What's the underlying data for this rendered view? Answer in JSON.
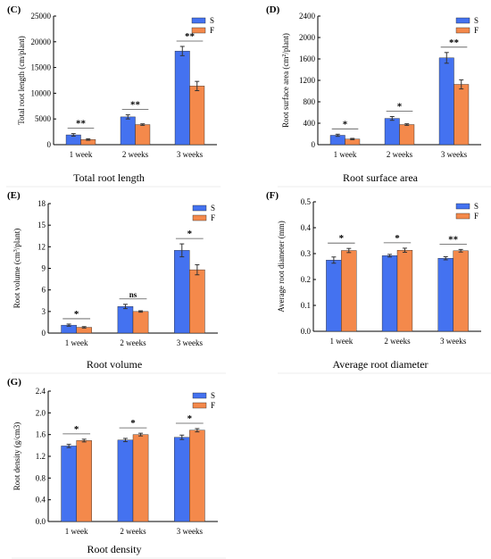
{
  "colors": {
    "S": "#4472f0",
    "F": "#f4894b",
    "error": "#333333"
  },
  "chart_data": [
    {
      "panel_label": "(C)",
      "type": "bar",
      "title": "Total root length",
      "ylabel": "Total root length (cm/plant)",
      "ylim": [
        0,
        25000
      ],
      "yticks": [
        "0",
        "5000",
        "10000",
        "15000",
        "20000",
        "25000"
      ],
      "categories": [
        "1 week",
        "2 weeks",
        "3 weeks"
      ],
      "series": [
        {
          "name": "S",
          "values": [
            1900,
            5400,
            18200
          ],
          "errors": [
            250,
            400,
            900
          ]
        },
        {
          "name": "F",
          "values": [
            1000,
            3900,
            11400
          ],
          "errors": [
            150,
            150,
            900
          ]
        }
      ],
      "significance": [
        "**",
        "**",
        "**"
      ],
      "legend_position": "top-right"
    },
    {
      "panel_label": "(D)",
      "type": "bar",
      "title": "Root surface area",
      "ylabel": "Root surface area (cm2/plant)",
      "ylim": [
        0,
        2400
      ],
      "yticks": [
        "0",
        "400",
        "800",
        "1200",
        "1600",
        "2000",
        "2400"
      ],
      "categories": [
        "1 week",
        "2 weeks",
        "3 weeks"
      ],
      "series": [
        {
          "name": "S",
          "values": [
            175,
            490,
            1620
          ],
          "errors": [
            20,
            35,
            100
          ]
        },
        {
          "name": "F",
          "values": [
            105,
            375,
            1125
          ],
          "errors": [
            12,
            15,
            85
          ]
        }
      ],
      "significance": [
        "*",
        "*",
        "**"
      ],
      "legend_position": "top-right"
    },
    {
      "panel_label": "(E)",
      "type": "bar",
      "title": "Root volume",
      "ylabel": "Root volume (cm3/plant)",
      "ylim": [
        0,
        18
      ],
      "yticks": [
        "0",
        "3",
        "6",
        "9",
        "12",
        "15",
        "18"
      ],
      "categories": [
        "1 week",
        "2 weeks",
        "3 weeks"
      ],
      "series": [
        {
          "name": "S",
          "values": [
            1.1,
            3.7,
            11.5
          ],
          "errors": [
            0.15,
            0.3,
            0.9
          ]
        },
        {
          "name": "F",
          "values": [
            0.8,
            3.0,
            8.8
          ],
          "errors": [
            0.1,
            0.1,
            0.7
          ]
        }
      ],
      "significance": [
        "*",
        "ns",
        "*"
      ],
      "legend_position": "top-right"
    },
    {
      "panel_label": "(F)",
      "type": "bar",
      "title": "Average root diameter",
      "ylabel": "Average root diameter (mm)",
      "ylim": [
        0,
        0.5
      ],
      "yticks": [
        "0.0",
        "0.1",
        "0.2",
        "0.3",
        "0.4",
        "0.5"
      ],
      "categories": [
        "1 week",
        "2 weeks",
        "3 weeks"
      ],
      "series": [
        {
          "name": "S",
          "values": [
            0.275,
            0.292,
            0.282
          ],
          "errors": [
            0.012,
            0.005,
            0.006
          ]
        },
        {
          "name": "F",
          "values": [
            0.312,
            0.313,
            0.311
          ],
          "errors": [
            0.008,
            0.008,
            0.005
          ]
        }
      ],
      "significance": [
        "*",
        "*",
        "**"
      ],
      "legend_position": "top-right"
    },
    {
      "panel_label": "(G)",
      "type": "bar",
      "title": "Root density",
      "ylabel": "Root density (g/cm3)",
      "ylim": [
        0,
        2.4
      ],
      "yticks": [
        "0.0",
        "0.4",
        "0.8",
        "1.2",
        "1.6",
        "2.0",
        "2.4"
      ],
      "categories": [
        "1 week",
        "2 weeks",
        "3 weeks"
      ],
      "series": [
        {
          "name": "S",
          "values": [
            1.39,
            1.5,
            1.55
          ],
          "errors": [
            0.03,
            0.03,
            0.04
          ]
        },
        {
          "name": "F",
          "values": [
            1.49,
            1.6,
            1.68
          ],
          "errors": [
            0.025,
            0.025,
            0.03
          ]
        }
      ],
      "significance": [
        "*",
        "*",
        "*"
      ],
      "legend_position": "top-right"
    }
  ]
}
